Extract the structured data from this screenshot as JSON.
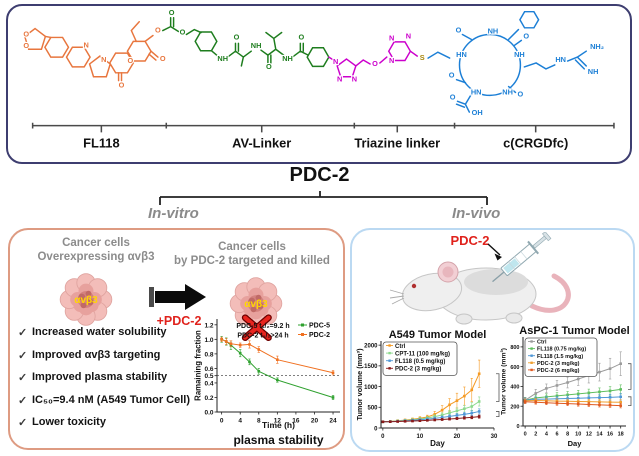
{
  "compound_name": "PDC-2",
  "branch_labels": {
    "invitro": "In-vitro",
    "invivo": "In-vivo"
  },
  "structure": {
    "bracket_labels": [
      "FL118",
      "AV-Linker",
      "Triazine linker",
      "c(CRGDfc)"
    ],
    "palette": {
      "o": "#E8763E",
      "g": "#1E7D1E",
      "m": "#CC00CC",
      "b": "#1C7FD6",
      "s": "#A8860B"
    },
    "segment_names": [
      "FL118 drug (orange)",
      "AV-Linker (green)",
      "Triazine linker (magenta)",
      "c(CRGDfc) peptide (blue)"
    ],
    "atoms": [
      [
        "O",
        15,
        31,
        "o"
      ],
      [
        "O",
        15,
        43,
        "o"
      ],
      [
        "N",
        76,
        42,
        "o"
      ],
      [
        "N",
        94,
        57,
        "o"
      ],
      [
        "O",
        112,
        83,
        "o"
      ],
      [
        "O",
        121,
        58,
        "o"
      ],
      [
        "O",
        154,
        56,
        "o"
      ],
      [
        "O",
        149,
        27,
        "o"
      ],
      [
        "O",
        163,
        9,
        "g"
      ],
      [
        "O",
        174,
        29,
        "g"
      ],
      [
        "NH",
        215,
        56,
        "g"
      ],
      [
        "O",
        229,
        34,
        "g"
      ],
      [
        "NH",
        249,
        43,
        "g"
      ],
      [
        "O",
        262,
        64,
        "g"
      ],
      [
        "NH",
        281,
        56,
        "g"
      ],
      [
        "O",
        295,
        34,
        "g"
      ],
      [
        "N",
        330,
        59,
        "m"
      ],
      [
        "N",
        334,
        77,
        "m"
      ],
      [
        "N",
        349,
        77,
        "m"
      ],
      [
        "O",
        370,
        61,
        "m"
      ],
      [
        "N",
        387,
        35,
        "m"
      ],
      [
        "N",
        387,
        58,
        "m"
      ],
      [
        "N",
        404,
        33,
        "m"
      ],
      [
        "S",
        418,
        55,
        "s"
      ],
      [
        "O",
        455,
        27,
        "b"
      ],
      [
        "NH",
        490,
        28,
        "b"
      ],
      [
        "HN",
        458,
        52,
        "b"
      ],
      [
        "NH",
        517,
        52,
        "b"
      ],
      [
        "O",
        448,
        73,
        "b"
      ],
      [
        "HN",
        473,
        90,
        "b"
      ],
      [
        "NH",
        505,
        90,
        "b"
      ],
      [
        "O",
        449,
        95,
        "b"
      ],
      [
        "OH",
        474,
        111,
        "b"
      ],
      [
        "O",
        518,
        92,
        "b"
      ],
      [
        "O",
        524,
        33,
        "b"
      ],
      [
        "HN",
        559,
        57,
        "b"
      ],
      [
        "NH₂",
        596,
        44,
        "b"
      ],
      [
        "NH",
        592,
        69,
        "b"
      ]
    ]
  },
  "invitro_panel": {
    "heading_before": {
      "line1": "Cancer cells",
      "line2": "Overexpressing αvβ3"
    },
    "heading_after": {
      "line1": "Cancer cells",
      "line2": "by PDC-2 targeted and killed"
    },
    "cell_marker": "αvβ3",
    "arrow_label": "+PDC-2",
    "check_glyph": "✓",
    "checklist": [
      "Increased water solubility",
      "Improved αvβ3 targeting",
      "Improved plasma stability",
      "IC₅₀=9.4 nM (A549 Tumor Cell)",
      "Lower toxicity"
    ]
  },
  "invivo_panel": {
    "injection_label": "PDC-2"
  },
  "chart_data": [
    {
      "id": "plasma",
      "type": "line",
      "title": "",
      "sublabel": "plasma stability",
      "xlabel": "Time (h)",
      "ylabel": "Ramaining fraction",
      "xlim": [
        -1,
        25.5
      ],
      "ylim": [
        0,
        1.28
      ],
      "xticks": [
        0,
        4,
        8,
        12,
        16,
        20,
        24
      ],
      "yticks": [
        0.0,
        0.2,
        0.4,
        0.5,
        0.6,
        0.8,
        1.0,
        1.2
      ],
      "ytick_dec": 1,
      "dashed_y": 0.5,
      "annotations": [
        "PDC-5 t₁/₂=9.2 h",
        "PDC-2 t₁/₂>24 h"
      ],
      "x": [
        0,
        1,
        2,
        4,
        6,
        8,
        12,
        24
      ],
      "series": [
        {
          "name": "PDC-5",
          "color": "#2FA12F",
          "values": [
            1.0,
            0.97,
            0.92,
            0.81,
            0.69,
            0.56,
            0.44,
            0.2
          ],
          "err": [
            0.04,
            0.05,
            0.06,
            0.05,
            0.04,
            0.04,
            0.03,
            0.03
          ]
        },
        {
          "name": "PDC-2",
          "color": "#F07020",
          "values": [
            1.0,
            0.97,
            0.94,
            0.92,
            0.93,
            0.86,
            0.72,
            0.54
          ],
          "err": [
            0.03,
            0.04,
            0.04,
            0.03,
            0.05,
            0.04,
            0.05,
            0.03
          ]
        }
      ]
    },
    {
      "id": "a549",
      "type": "line",
      "title": "A549 Tumor Model",
      "xlabel": "Day",
      "ylabel": "Tumor volume (mm³)",
      "xlim": [
        -0.5,
        30
      ],
      "ylim": [
        0,
        2100
      ],
      "xticks": [
        0,
        10,
        20,
        30
      ],
      "yticks": [
        0,
        500,
        1000,
        1500,
        2000
      ],
      "x": [
        0,
        2,
        4,
        6,
        8,
        10,
        12,
        14,
        16,
        18,
        20,
        22,
        24,
        26
      ],
      "series": [
        {
          "name": "Ctrl",
          "color": "#F59A23",
          "values": [
            150,
            160,
            175,
            190,
            210,
            235,
            265,
            330,
            430,
            560,
            660,
            770,
            920,
            1310
          ],
          "err": [
            20,
            22,
            25,
            28,
            32,
            38,
            45,
            70,
            110,
            150,
            180,
            220,
            280,
            330
          ]
        },
        {
          "name": "CPT-11 (100 mg/kg)",
          "color": "#8CD98C",
          "values": [
            150,
            158,
            168,
            182,
            198,
            218,
            242,
            275,
            315,
            365,
            415,
            465,
            520,
            640
          ],
          "err": [
            18,
            20,
            22,
            25,
            28,
            32,
            36,
            42,
            50,
            60,
            70,
            80,
            95,
            110
          ]
        },
        {
          "name": "FL118 (0.5 mg/kg)",
          "color": "#4F97D6",
          "values": [
            150,
            155,
            163,
            173,
            185,
            198,
            214,
            232,
            255,
            280,
            305,
            330,
            360,
            400
          ],
          "err": [
            15,
            16,
            18,
            20,
            22,
            25,
            28,
            31,
            35,
            39,
            44,
            49,
            55,
            62
          ]
        },
        {
          "name": "PDC-2 (3 mg/kg)",
          "color": "#8B1A1A",
          "values": [
            150,
            152,
            156,
            162,
            168,
            176,
            185,
            195,
            206,
            218,
            230,
            243,
            256,
            275
          ],
          "err": [
            12,
            13,
            14,
            15,
            16,
            18,
            20,
            22,
            24,
            26,
            28,
            31,
            34,
            38
          ]
        }
      ],
      "sig_brackets": [
        [
          640,
          1310
        ],
        [
          275,
          400
        ]
      ]
    },
    {
      "id": "aspc1",
      "type": "line",
      "title": "AsPC-1 Tumor Model",
      "xlabel": "Day",
      "ylabel": "Tumor volume (mm³)",
      "xlim": [
        -0.4,
        19
      ],
      "ylim": [
        0,
        900
      ],
      "xticks": [
        0,
        2,
        4,
        6,
        8,
        10,
        12,
        14,
        16,
        18
      ],
      "yticks": [
        0,
        200,
        400,
        600,
        800
      ],
      "x": [
        0,
        2,
        4,
        6,
        8,
        10,
        12,
        14,
        16,
        18
      ],
      "series": [
        {
          "name": "Ctrl",
          "color": "#9B9B9B",
          "values": [
            260,
            330,
            380,
            410,
            440,
            475,
            510,
            545,
            580,
            630
          ],
          "err": [
            30,
            40,
            45,
            50,
            55,
            65,
            75,
            90,
            105,
            120
          ]
        },
        {
          "name": "FL118 (0.75 mg/kg)",
          "color": "#5FBF5F",
          "values": [
            260,
            285,
            295,
            305,
            315,
            325,
            335,
            345,
            355,
            370
          ],
          "err": [
            25,
            28,
            30,
            32,
            34,
            36,
            38,
            40,
            43,
            46
          ]
        },
        {
          "name": "FL118 (1.5 mg/kg)",
          "color": "#4F97D6",
          "values": [
            260,
            270,
            272,
            275,
            278,
            281,
            284,
            287,
            290,
            295
          ],
          "err": [
            22,
            24,
            25,
            26,
            27,
            28,
            29,
            30,
            31,
            33
          ]
        },
        {
          "name": "PDC-2 (3 mg/kg)",
          "color": "#F0A030",
          "values": [
            255,
            258,
            255,
            252,
            250,
            248,
            246,
            244,
            242,
            240
          ],
          "err": [
            20,
            21,
            21,
            22,
            22,
            23,
            23,
            24,
            24,
            25
          ]
        },
        {
          "name": "PDC-2 (6 mg/kg)",
          "color": "#E05A20",
          "values": [
            245,
            240,
            235,
            230,
            226,
            222,
            218,
            214,
            210,
            206
          ],
          "err": [
            18,
            19,
            19,
            20,
            20,
            21,
            21,
            22,
            22,
            23
          ]
        }
      ],
      "sig_brackets": [
        [
          370,
          630
        ],
        [
          206,
          295
        ]
      ]
    }
  ]
}
